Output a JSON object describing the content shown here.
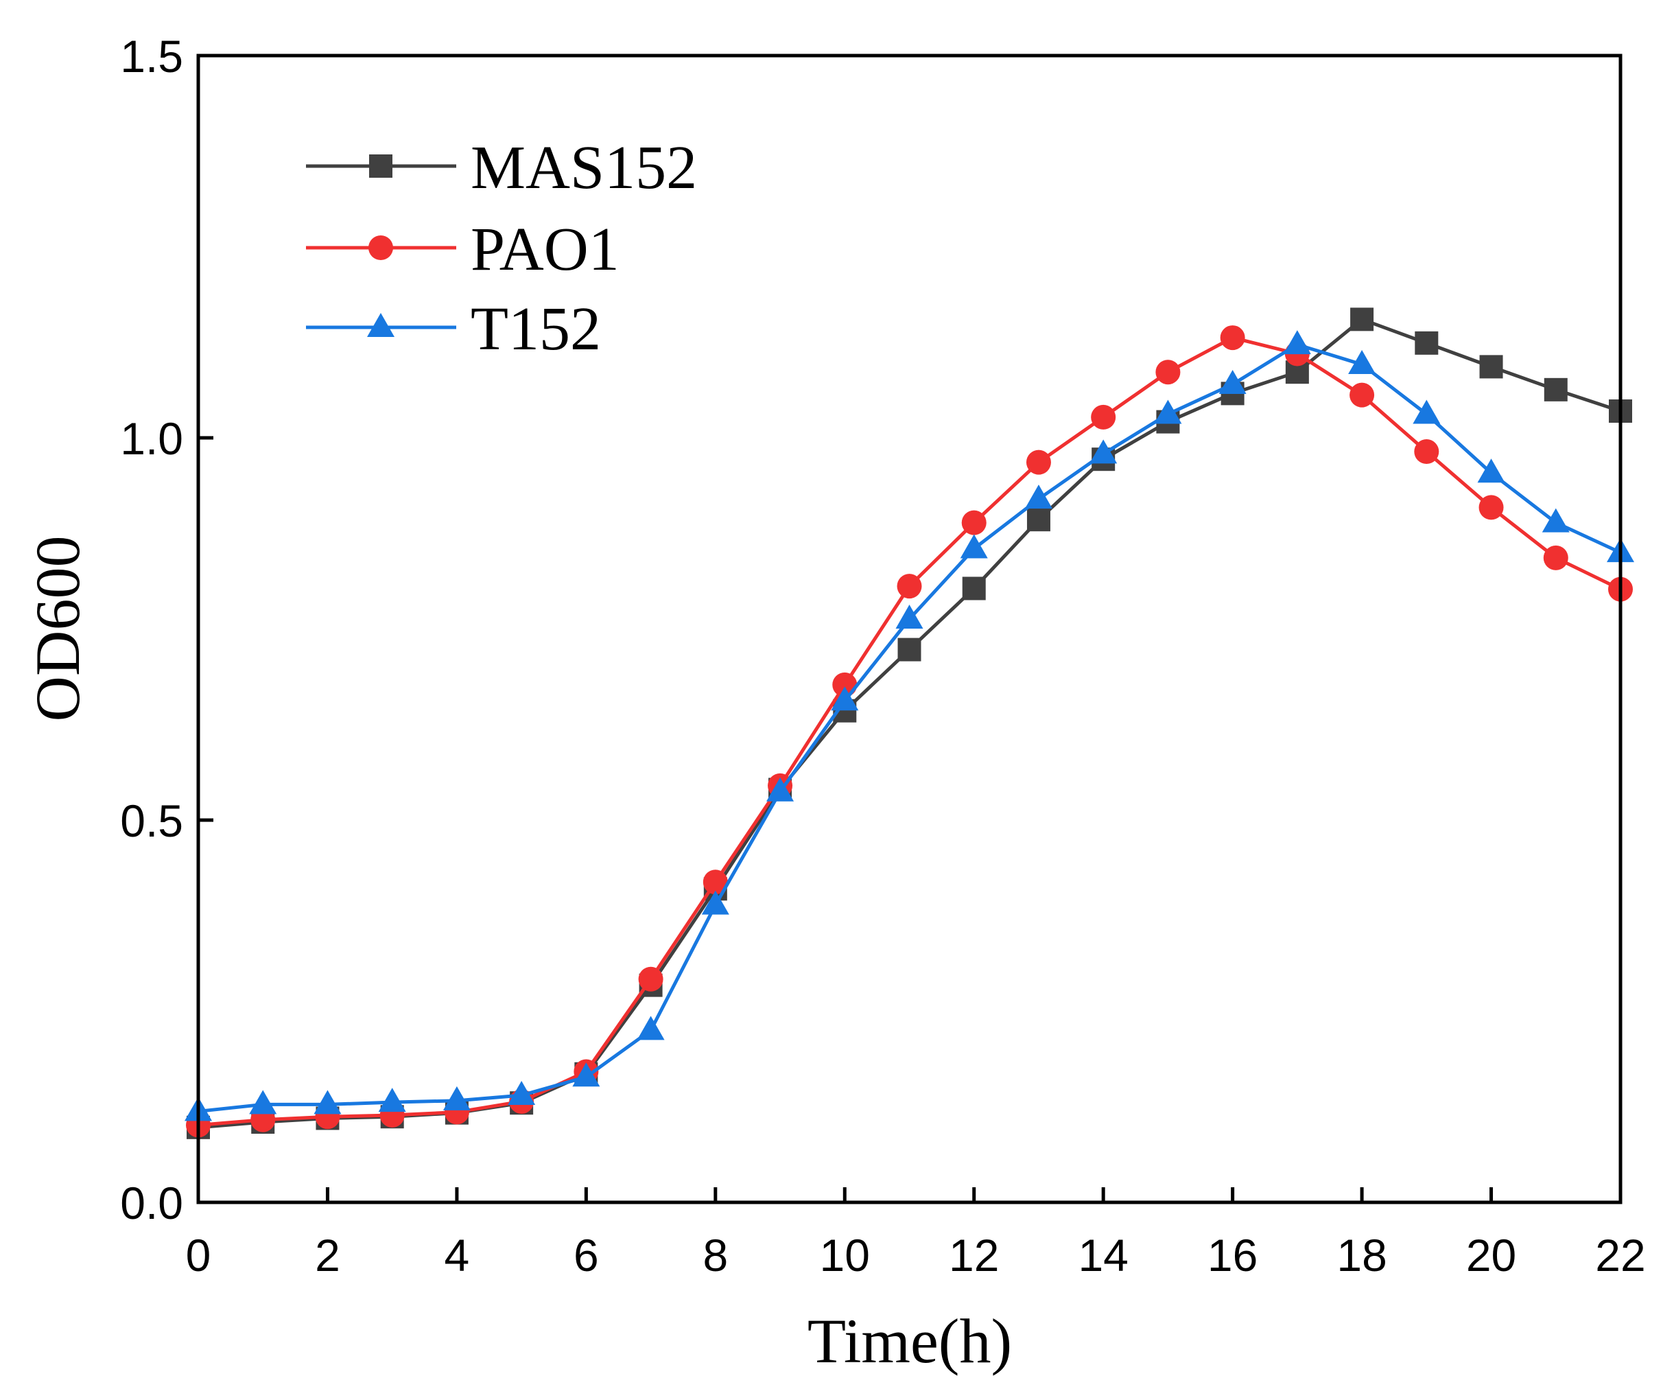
{
  "chart_data": {
    "type": "line",
    "title": "",
    "xlabel": "Time(h)",
    "ylabel": "OD600",
    "xlim": [
      0,
      22
    ],
    "ylim": [
      0,
      1.5
    ],
    "xticks": [
      "0",
      "2",
      "4",
      "6",
      "8",
      "10",
      "12",
      "14",
      "16",
      "18",
      "20",
      "22"
    ],
    "yticks": [
      "0.0",
      "0.5",
      "1.0",
      "1.5"
    ],
    "grid": false,
    "legend_position": "top-left",
    "x": [
      0,
      1,
      2,
      3,
      4,
      5,
      6,
      7,
      8,
      9,
      10,
      11,
      12,
      13,
      14,
      15,
      16,
      17,
      18,
      19,
      20,
      21,
      22
    ],
    "series": [
      {
        "name": "MAS152",
        "color": "#404040",
        "marker": "square",
        "values": [
          0.098,
          0.105,
          0.11,
          0.112,
          0.117,
          0.13,
          0.168,
          0.284,
          0.41,
          0.54,
          0.643,
          0.723,
          0.803,
          0.893,
          0.972,
          1.021,
          1.058,
          1.086,
          1.155,
          1.124,
          1.093,
          1.063,
          1.035
        ]
      },
      {
        "name": "PAO1",
        "color": "#f03030",
        "marker": "circle",
        "values": [
          0.101,
          0.108,
          0.112,
          0.114,
          0.118,
          0.132,
          0.171,
          0.292,
          0.419,
          0.545,
          0.677,
          0.806,
          0.889,
          0.968,
          1.027,
          1.086,
          1.131,
          1.11,
          1.056,
          0.982,
          0.909,
          0.843,
          0.802
        ]
      },
      {
        "name": "T152",
        "color": "#1878e0",
        "marker": "triangle",
        "values": [
          0.119,
          0.128,
          0.128,
          0.131,
          0.133,
          0.14,
          0.164,
          0.225,
          0.389,
          0.537,
          0.656,
          0.763,
          0.855,
          0.92,
          0.979,
          1.031,
          1.07,
          1.122,
          1.096,
          1.031,
          0.954,
          0.889,
          0.85
        ]
      }
    ]
  }
}
